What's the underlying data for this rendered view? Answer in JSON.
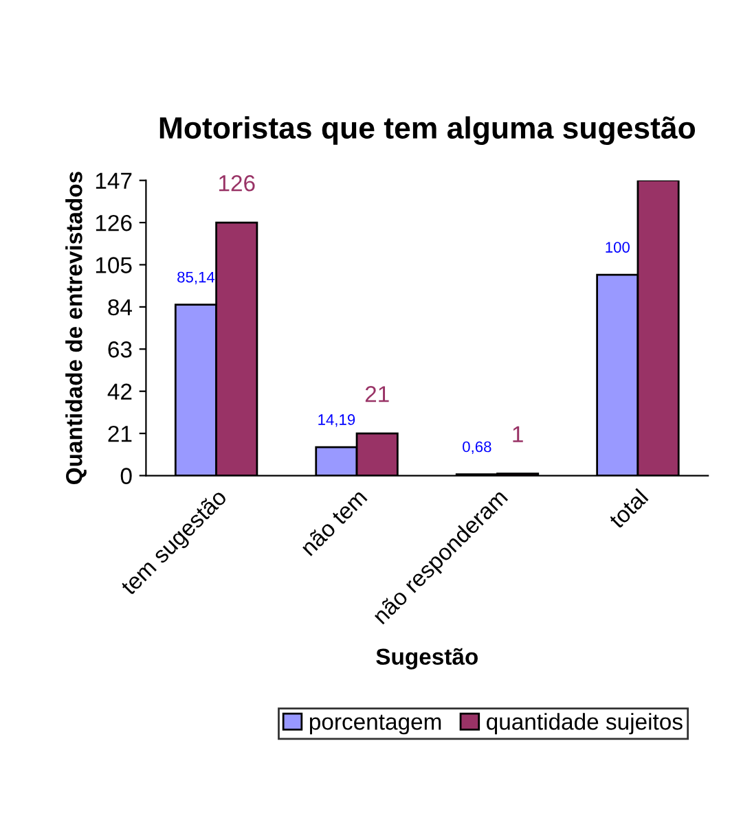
{
  "chart_data": {
    "type": "bar",
    "title": "Motoristas que tem alguma sugestão",
    "xlabel": "Sugestão",
    "ylabel": "Quantidade de entrevistados",
    "categories": [
      "tem sugestão",
      "não tem",
      "não responderam",
      "total"
    ],
    "series": [
      {
        "name": "porcentagem",
        "color": "#9999ff",
        "values": [
          85.14,
          14.19,
          0.68,
          100
        ],
        "value_labels": [
          "85,14",
          "14,19",
          "0,68",
          "100"
        ]
      },
      {
        "name": "quantidade sujeitos",
        "color": "#993366",
        "values": [
          126,
          21,
          1,
          147
        ],
        "value_labels": [
          "126",
          "21",
          "1",
          null
        ]
      }
    ],
    "ylim": [
      0,
      147
    ],
    "yticks": [
      0,
      21,
      42,
      63,
      84,
      105,
      126,
      147
    ],
    "grid": false,
    "legend": "bottom"
  }
}
